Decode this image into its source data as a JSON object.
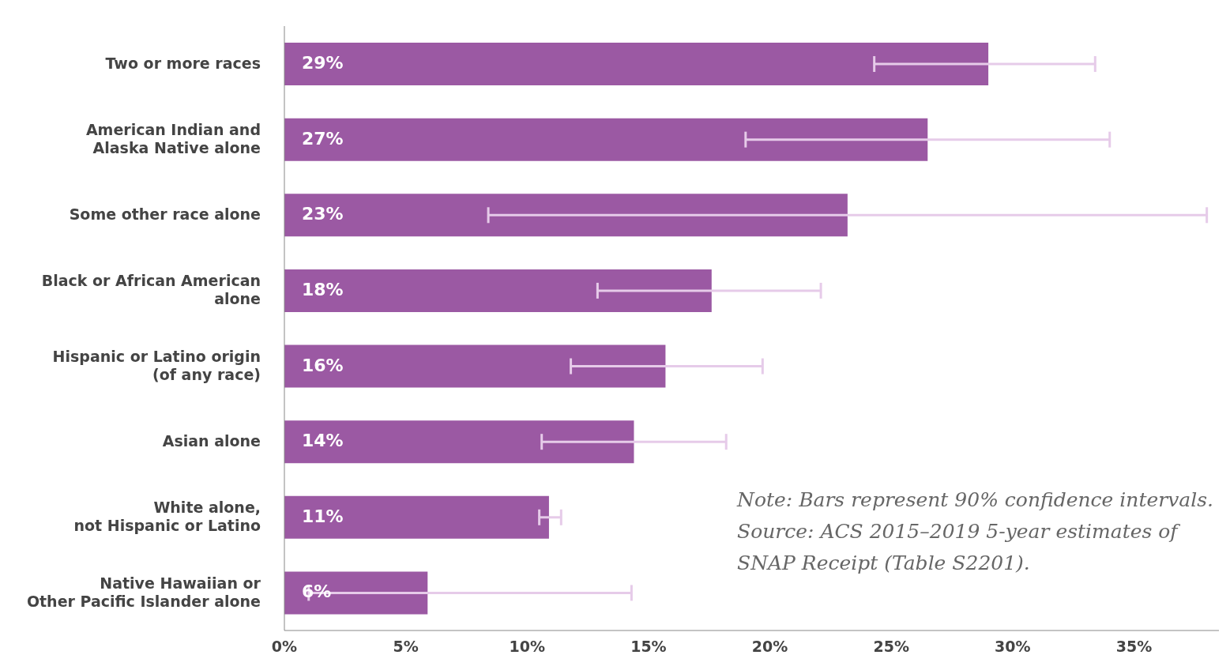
{
  "chart_data": {
    "type": "bar",
    "orientation": "horizontal",
    "categories": [
      "Two or more races",
      "American Indian and\nAlaska Native alone",
      "Some other race alone",
      "Black or African American\nalone",
      "Hispanic or Latino origin\n(of any race)",
      "Asian alone",
      "White alone,\nnot Hispanic or Latino",
      "Native Hawaiian or\nOther Pacific Islander alone"
    ],
    "series": [
      {
        "color": "#9b59a3",
        "values": [
          29.0,
          26.5,
          23.2,
          17.6,
          15.7,
          14.4,
          10.9,
          5.9
        ],
        "errors": [
          [
            24.3,
            33.4
          ],
          [
            19.0,
            34.0
          ],
          [
            8.4,
            38.0
          ],
          [
            12.9,
            22.1
          ],
          [
            11.8,
            19.7
          ],
          [
            10.6,
            18.2
          ],
          [
            10.5,
            11.4
          ],
          [
            1.0,
            14.3
          ]
        ],
        "value_labels": [
          "29%",
          "27%",
          "23%",
          "18%",
          "16%",
          "14%",
          "11%",
          "6%"
        ]
      }
    ],
    "xlim": [
      0,
      38.5
    ],
    "xticks": [
      {
        "value": 0,
        "label": "0%"
      },
      {
        "value": 5,
        "label": "5%"
      },
      {
        "value": 10,
        "label": "10%"
      },
      {
        "value": 15,
        "label": "15%"
      },
      {
        "value": 20,
        "label": "20%"
      },
      {
        "value": 25,
        "label": "25%"
      },
      {
        "value": 30,
        "label": "30%"
      },
      {
        "value": 35,
        "label": "35%"
      }
    ],
    "grid": false,
    "legend": false,
    "annotations": [
      "Note: Bars represent 90% confidence intervals.",
      "Source: ACS 2015–2019 5-year estimates of SNAP Receipt (Table S2201)."
    ]
  }
}
